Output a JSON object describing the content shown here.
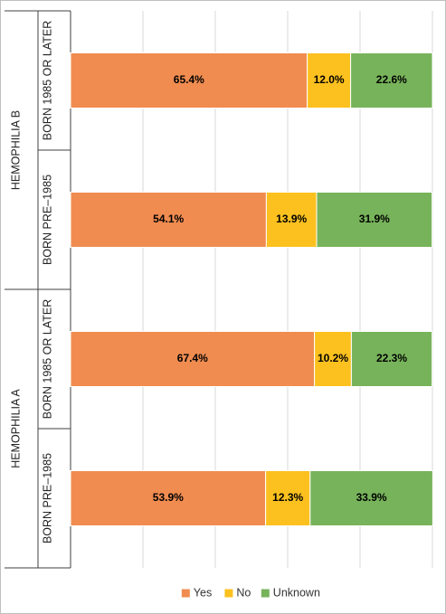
{
  "chart_data": {
    "type": "stacked_bar",
    "orientation": "horizontal",
    "groups": [
      {
        "name": "HEMOPHILIA B",
        "categories": [
          "BORN 1985 OR LATER",
          "BORN PRE–1985"
        ]
      },
      {
        "name": "HEMOPHILIA A",
        "categories": [
          "BORN 1985 OR LATER",
          "BORN PRE–1985"
        ]
      }
    ],
    "series": [
      {
        "name": "Yes",
        "color": "#f08c50",
        "values": [
          65.4,
          54.1,
          67.4,
          53.9
        ],
        "value_labels": [
          "65.4%",
          "54.1%",
          "67.4%",
          "53.9%"
        ]
      },
      {
        "name": "No",
        "color": "#fcc11f",
        "values": [
          12.0,
          13.9,
          10.2,
          12.3
        ],
        "value_labels": [
          "12.0%",
          "13.9%",
          "10.2%",
          "12.3%"
        ]
      },
      {
        "name": "Unknown",
        "color": "#77b35a",
        "values": [
          22.6,
          31.9,
          22.3,
          33.9
        ],
        "value_labels": [
          "22.6%",
          "31.9%",
          "22.3%",
          "33.9%"
        ]
      }
    ],
    "xlim": [
      0,
      100
    ],
    "xticks": [
      0,
      20,
      40,
      60,
      80,
      100
    ],
    "grid": true,
    "legend": "bottom"
  }
}
